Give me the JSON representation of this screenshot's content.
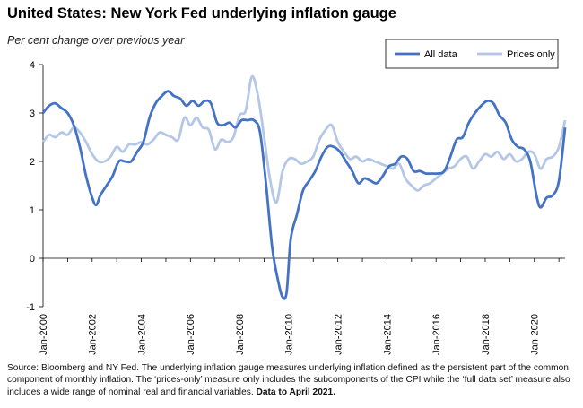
{
  "header": {
    "title": "United States: New York Fed underlying inflation gauge",
    "subtitle": "Per cent change over previous year"
  },
  "footer": {
    "source_text": "Source: Bloomberg and NY Fed. The underlying inflation gauge measures underlying inflation defined as the persistent part of the common component of monthly inflation. The ‘prices-only’ measure only includes the subcomponents of the CPI while the ‘full data set’ measure also includes a wide range of nominal real and financial variables.",
    "data_note": "Data to April 2021."
  },
  "chart_data": {
    "type": "line",
    "title": "United States: New York Fed underlying inflation gauge",
    "ylabel": "Per cent change over previous year",
    "xlabel": "",
    "ylim": [
      -1,
      4
    ],
    "yticks": [
      -1,
      0,
      1,
      2,
      3,
      4
    ],
    "xlim": [
      "2000-01",
      "2021-04"
    ],
    "x_ticks": [
      "Jan-2000",
      "Jan-2002",
      "Jan-2004",
      "Jan-2006",
      "Jan-2008",
      "Jan-2010",
      "Jan-2012",
      "Jan-2014",
      "Jan-2016",
      "Jan-2018",
      "Jan-2020"
    ],
    "legend": {
      "placement": "top-right",
      "entries": [
        "All data",
        "Prices only"
      ]
    },
    "grid": false,
    "series": [
      {
        "name": "All data",
        "color": "#4472c4",
        "points": [
          [
            "2000-01",
            3.0
          ],
          [
            "2000-04",
            3.15
          ],
          [
            "2000-07",
            3.2
          ],
          [
            "2000-10",
            3.1
          ],
          [
            "2001-01",
            3.0
          ],
          [
            "2001-04",
            2.75
          ],
          [
            "2001-07",
            2.3
          ],
          [
            "2001-10",
            1.7
          ],
          [
            "2002-01",
            1.25
          ],
          [
            "2002-03",
            1.1
          ],
          [
            "2002-05",
            1.3
          ],
          [
            "2002-08",
            1.5
          ],
          [
            "2002-11",
            1.7
          ],
          [
            "2003-02",
            2.0
          ],
          [
            "2003-05",
            2.0
          ],
          [
            "2003-08",
            2.0
          ],
          [
            "2003-11",
            2.2
          ],
          [
            "2004-02",
            2.4
          ],
          [
            "2004-05",
            2.9
          ],
          [
            "2004-08",
            3.2
          ],
          [
            "2004-11",
            3.35
          ],
          [
            "2005-02",
            3.45
          ],
          [
            "2005-05",
            3.35
          ],
          [
            "2005-08",
            3.3
          ],
          [
            "2005-11",
            3.15
          ],
          [
            "2006-02",
            3.25
          ],
          [
            "2006-05",
            3.15
          ],
          [
            "2006-08",
            3.25
          ],
          [
            "2006-11",
            3.2
          ],
          [
            "2007-02",
            2.8
          ],
          [
            "2007-05",
            2.75
          ],
          [
            "2007-08",
            2.8
          ],
          [
            "2007-11",
            2.7
          ],
          [
            "2008-02",
            2.85
          ],
          [
            "2008-05",
            2.85
          ],
          [
            "2008-08",
            2.85
          ],
          [
            "2008-11",
            2.6
          ],
          [
            "2009-02",
            1.5
          ],
          [
            "2009-05",
            0.2
          ],
          [
            "2009-08",
            -0.5
          ],
          [
            "2009-10",
            -0.8
          ],
          [
            "2009-12",
            -0.7
          ],
          [
            "2010-02",
            0.4
          ],
          [
            "2010-05",
            0.9
          ],
          [
            "2010-08",
            1.4
          ],
          [
            "2010-11",
            1.6
          ],
          [
            "2011-02",
            1.8
          ],
          [
            "2011-05",
            2.1
          ],
          [
            "2011-08",
            2.3
          ],
          [
            "2011-11",
            2.3
          ],
          [
            "2012-02",
            2.2
          ],
          [
            "2012-05",
            2.0
          ],
          [
            "2012-08",
            1.8
          ],
          [
            "2012-11",
            1.55
          ],
          [
            "2013-02",
            1.65
          ],
          [
            "2013-05",
            1.6
          ],
          [
            "2013-08",
            1.55
          ],
          [
            "2013-11",
            1.7
          ],
          [
            "2014-02",
            1.9
          ],
          [
            "2014-05",
            1.95
          ],
          [
            "2014-08",
            2.1
          ],
          [
            "2014-11",
            2.05
          ],
          [
            "2015-02",
            1.8
          ],
          [
            "2015-05",
            1.8
          ],
          [
            "2015-08",
            1.75
          ],
          [
            "2015-11",
            1.75
          ],
          [
            "2016-02",
            1.75
          ],
          [
            "2016-05",
            1.8
          ],
          [
            "2016-08",
            2.1
          ],
          [
            "2016-11",
            2.45
          ],
          [
            "2017-02",
            2.5
          ],
          [
            "2017-05",
            2.8
          ],
          [
            "2017-08",
            3.0
          ],
          [
            "2017-11",
            3.15
          ],
          [
            "2018-02",
            3.25
          ],
          [
            "2018-05",
            3.2
          ],
          [
            "2018-08",
            2.95
          ],
          [
            "2018-11",
            2.8
          ],
          [
            "2019-02",
            2.45
          ],
          [
            "2019-05",
            2.3
          ],
          [
            "2019-08",
            2.25
          ],
          [
            "2019-11",
            2.0
          ],
          [
            "2020-02",
            1.3
          ],
          [
            "2020-04",
            1.05
          ],
          [
            "2020-07",
            1.25
          ],
          [
            "2020-10",
            1.3
          ],
          [
            "2021-01",
            1.6
          ],
          [
            "2021-04",
            2.7
          ]
        ]
      },
      {
        "name": "Prices only",
        "color": "#b4c7e7",
        "points": [
          [
            "2000-01",
            2.4
          ],
          [
            "2000-04",
            2.55
          ],
          [
            "2000-07",
            2.5
          ],
          [
            "2000-10",
            2.6
          ],
          [
            "2001-01",
            2.55
          ],
          [
            "2001-04",
            2.7
          ],
          [
            "2001-07",
            2.6
          ],
          [
            "2001-10",
            2.4
          ],
          [
            "2002-01",
            2.15
          ],
          [
            "2002-04",
            2.0
          ],
          [
            "2002-07",
            2.0
          ],
          [
            "2002-10",
            2.1
          ],
          [
            "2003-01",
            2.3
          ],
          [
            "2003-04",
            2.2
          ],
          [
            "2003-07",
            2.35
          ],
          [
            "2003-10",
            2.35
          ],
          [
            "2004-01",
            2.4
          ],
          [
            "2004-04",
            2.35
          ],
          [
            "2004-07",
            2.45
          ],
          [
            "2004-10",
            2.6
          ],
          [
            "2005-01",
            2.55
          ],
          [
            "2005-04",
            2.5
          ],
          [
            "2005-07",
            2.45
          ],
          [
            "2005-10",
            2.9
          ],
          [
            "2006-01",
            2.75
          ],
          [
            "2006-04",
            2.9
          ],
          [
            "2006-07",
            2.7
          ],
          [
            "2006-10",
            2.65
          ],
          [
            "2007-01",
            2.25
          ],
          [
            "2007-04",
            2.45
          ],
          [
            "2007-07",
            2.4
          ],
          [
            "2007-10",
            2.5
          ],
          [
            "2008-01",
            2.95
          ],
          [
            "2008-04",
            3.05
          ],
          [
            "2008-07",
            3.75
          ],
          [
            "2008-10",
            3.35
          ],
          [
            "2009-01",
            2.5
          ],
          [
            "2009-04",
            1.6
          ],
          [
            "2009-07",
            1.15
          ],
          [
            "2009-10",
            1.8
          ],
          [
            "2010-01",
            2.05
          ],
          [
            "2010-04",
            2.05
          ],
          [
            "2010-07",
            1.95
          ],
          [
            "2010-10",
            2.0
          ],
          [
            "2011-01",
            2.1
          ],
          [
            "2011-04",
            2.45
          ],
          [
            "2011-07",
            2.65
          ],
          [
            "2011-10",
            2.75
          ],
          [
            "2012-01",
            2.4
          ],
          [
            "2012-04",
            2.2
          ],
          [
            "2012-07",
            2.05
          ],
          [
            "2012-10",
            2.1
          ],
          [
            "2013-01",
            2.0
          ],
          [
            "2013-04",
            2.05
          ],
          [
            "2013-07",
            2.0
          ],
          [
            "2013-10",
            1.95
          ],
          [
            "2014-01",
            1.9
          ],
          [
            "2014-04",
            1.85
          ],
          [
            "2014-07",
            1.95
          ],
          [
            "2014-10",
            1.65
          ],
          [
            "2015-01",
            1.5
          ],
          [
            "2015-04",
            1.4
          ],
          [
            "2015-07",
            1.5
          ],
          [
            "2015-10",
            1.55
          ],
          [
            "2016-01",
            1.65
          ],
          [
            "2016-04",
            1.75
          ],
          [
            "2016-07",
            1.85
          ],
          [
            "2016-10",
            1.9
          ],
          [
            "2017-01",
            2.05
          ],
          [
            "2017-04",
            2.1
          ],
          [
            "2017-07",
            1.85
          ],
          [
            "2017-10",
            2.0
          ],
          [
            "2018-01",
            2.15
          ],
          [
            "2018-04",
            2.1
          ],
          [
            "2018-07",
            2.2
          ],
          [
            "2018-10",
            2.05
          ],
          [
            "2019-01",
            2.15
          ],
          [
            "2019-04",
            2.0
          ],
          [
            "2019-07",
            2.05
          ],
          [
            "2019-10",
            2.2
          ],
          [
            "2020-01",
            2.15
          ],
          [
            "2020-04",
            1.85
          ],
          [
            "2020-07",
            2.05
          ],
          [
            "2020-10",
            2.1
          ],
          [
            "2021-01",
            2.3
          ],
          [
            "2021-04",
            2.85
          ]
        ]
      }
    ]
  }
}
